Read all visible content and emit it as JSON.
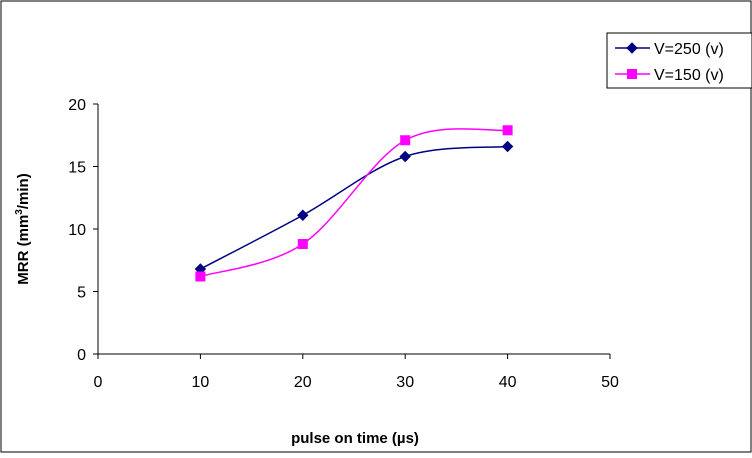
{
  "chart_data": {
    "type": "line",
    "title": "",
    "xlabel": "pulse on time (µs)",
    "ylabel": "MRR (mm³/min)",
    "ylabel_parts": {
      "pre": "MRR (mm",
      "sup": "3",
      "post": "/min)"
    },
    "xlim": [
      0,
      50
    ],
    "ylim": [
      0,
      20
    ],
    "xticks": [
      "0",
      "10",
      "20",
      "30",
      "40",
      "50"
    ],
    "yticks": [
      "0",
      "5",
      "10",
      "15",
      "20"
    ],
    "grid": false,
    "legend_position": "top-right",
    "series": [
      {
        "name": "V=250 (v)",
        "color": "#000080",
        "marker": "diamond",
        "x": [
          10,
          20,
          30,
          40
        ],
        "y": [
          6.8,
          11.1,
          15.8,
          16.6
        ]
      },
      {
        "name": "V=150 (v)",
        "color": "#ff00ff",
        "marker": "square",
        "x": [
          10,
          20,
          30,
          40
        ],
        "y": [
          6.2,
          8.8,
          17.1,
          17.9
        ]
      }
    ]
  }
}
